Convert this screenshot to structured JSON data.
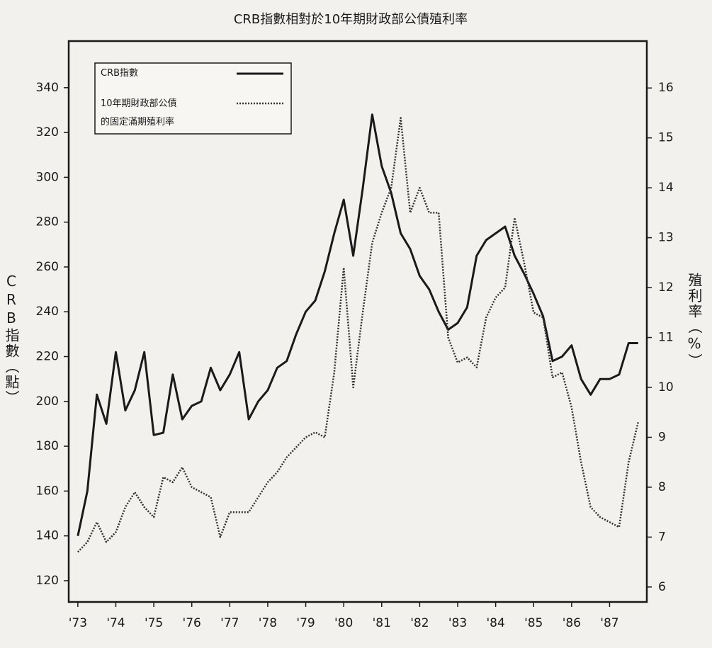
{
  "chart_data": {
    "type": "line",
    "title": "CRB指數相對於10年期財政部公債殖利率",
    "ylabel": "CRB指數（點）",
    "y2label": "殖利率（%）",
    "legend": "upper left",
    "x": [
      1973.0,
      1973.25,
      1973.5,
      1973.75,
      1974.0,
      1974.25,
      1974.5,
      1974.75,
      1975.0,
      1975.25,
      1975.5,
      1975.75,
      1976.0,
      1976.25,
      1976.5,
      1976.75,
      1977.0,
      1977.25,
      1977.5,
      1977.75,
      1978.0,
      1978.25,
      1978.5,
      1978.75,
      1979.0,
      1979.25,
      1979.5,
      1979.75,
      1980.0,
      1980.25,
      1980.5,
      1980.75,
      1981.0,
      1981.25,
      1981.5,
      1981.75,
      1982.0,
      1982.25,
      1982.5,
      1982.75,
      1983.0,
      1983.25,
      1983.5,
      1983.75,
      1984.0,
      1984.25,
      1984.5,
      1984.75,
      1985.0,
      1985.25,
      1985.5,
      1985.75,
      1986.0,
      1986.25,
      1986.5,
      1986.75,
      1987.0,
      1987.25,
      1987.5,
      1987.75
    ],
    "xlim": [
      1972.76,
      1987.98
    ],
    "xticks": [
      {
        "value": 1973,
        "label": "'73"
      },
      {
        "value": 1974,
        "label": "'74"
      },
      {
        "value": 1975,
        "label": "'75"
      },
      {
        "value": 1976,
        "label": "'76"
      },
      {
        "value": 1977,
        "label": "'77"
      },
      {
        "value": 1978,
        "label": "'78"
      },
      {
        "value": 1979,
        "label": "'79"
      },
      {
        "value": 1980,
        "label": "'80"
      },
      {
        "value": 1981,
        "label": "'81"
      },
      {
        "value": 1982,
        "label": "'82"
      },
      {
        "value": 1983,
        "label": "'83"
      },
      {
        "value": 1984,
        "label": "'84"
      },
      {
        "value": 1985,
        "label": "'85"
      },
      {
        "value": 1986,
        "label": "'86"
      },
      {
        "value": 1987,
        "label": "'87"
      }
    ],
    "ylim": [
      110.5,
      360.8
    ],
    "yticks": [
      120,
      140,
      160,
      180,
      200,
      220,
      240,
      260,
      280,
      300,
      320,
      340
    ],
    "y2lim": [
      5.7,
      16.94
    ],
    "y2ticks": [
      6,
      7,
      8,
      9,
      10,
      11,
      12,
      13,
      14,
      15,
      16
    ],
    "series": [
      {
        "name": "CRB指數",
        "color": "#1a1a1a",
        "style": "solid",
        "values": [
          140,
          160,
          203,
          190,
          222,
          196,
          205,
          222,
          185,
          186,
          212,
          192,
          198,
          200,
          215,
          205,
          212,
          222,
          192,
          200,
          205,
          215,
          218,
          230,
          240,
          245,
          258,
          275,
          290,
          265,
          295,
          328,
          305,
          293,
          275,
          268,
          256,
          250,
          240,
          232,
          235,
          242,
          265,
          272,
          275,
          278,
          265,
          257,
          248,
          238,
          218,
          220,
          225,
          210,
          203,
          210,
          210,
          212,
          226,
          226
        ]
      },
      {
        "name": "10年期財政部公債的固定滿期殖利率",
        "color": "#333333",
        "style": "dotted",
        "axis": "y2",
        "values": [
          6.7,
          6.9,
          7.3,
          6.9,
          7.1,
          7.6,
          7.9,
          7.6,
          7.4,
          8.2,
          8.1,
          8.4,
          8.0,
          7.9,
          7.8,
          7.0,
          7.5,
          7.5,
          7.5,
          7.8,
          8.1,
          8.3,
          8.6,
          8.8,
          9.0,
          9.1,
          9.0,
          10.3,
          12.4,
          10.0,
          11.5,
          12.9,
          13.5,
          14.0,
          15.4,
          13.5,
          14.0,
          13.5,
          13.5,
          11.0,
          10.5,
          10.6,
          10.4,
          11.4,
          11.8,
          12.0,
          13.4,
          12.5,
          11.5,
          11.4,
          10.2,
          10.3,
          9.6,
          8.5,
          7.6,
          7.4,
          7.3,
          7.2,
          8.5,
          9.3
        ]
      }
    ]
  }
}
